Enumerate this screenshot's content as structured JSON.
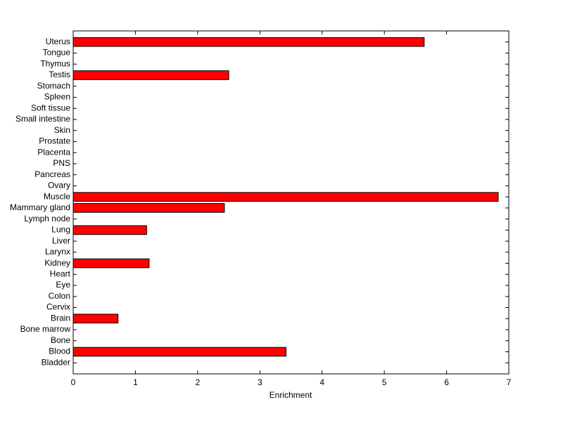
{
  "chart_data": {
    "type": "barh",
    "categories": [
      "Uterus",
      "Tongue",
      "Thymus",
      "Testis",
      "Stomach",
      "Spleen",
      "Soft tissue",
      "Small intestine",
      "Skin",
      "Prostate",
      "Placenta",
      "PNS",
      "Pancreas",
      "Ovary",
      "Muscle",
      "Mammary gland",
      "Lymph node",
      "Lung",
      "Liver",
      "Larynx",
      "Kidney",
      "Heart",
      "Eye",
      "Colon",
      "Cervix",
      "Brain",
      "Bone marrow",
      "Bone",
      "Blood",
      "Bladder"
    ],
    "values": [
      5.64,
      0,
      0,
      2.5,
      0,
      0,
      0,
      0,
      0,
      0,
      0,
      0,
      0,
      0,
      6.83,
      2.43,
      0,
      1.18,
      0,
      0,
      1.22,
      0,
      0,
      0,
      0,
      0.72,
      0,
      0,
      3.42,
      0
    ],
    "color": "#ff0000",
    "xlabel": "Enrichment",
    "xlim": [
      0,
      7
    ],
    "xticks": [
      0,
      1,
      2,
      3,
      4,
      5,
      6,
      7
    ]
  }
}
